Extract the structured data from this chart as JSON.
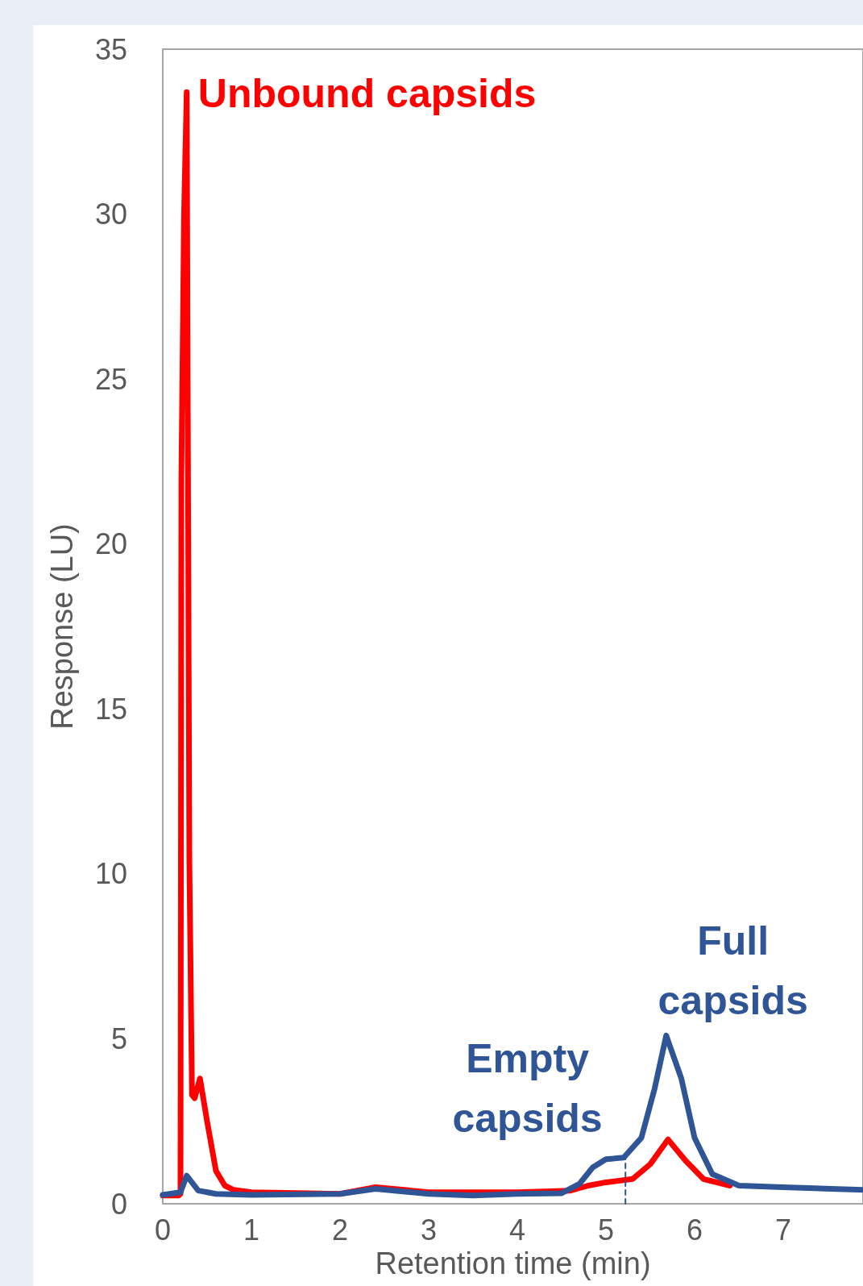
{
  "chart_data": {
    "type": "line",
    "xlabel": "Retention time (min)",
    "ylabel": "Response (LU)",
    "xlim": [
      0,
      7.9
    ],
    "xticks": [
      0,
      1,
      2,
      3,
      4,
      5,
      6,
      7
    ],
    "ylim": [
      0,
      35
    ],
    "yticks": [
      0,
      5,
      10,
      15,
      20,
      25,
      30,
      35
    ],
    "grid": false,
    "marker": "none",
    "line_style": "solid",
    "annotations": [
      {
        "text": "Unbound capsids",
        "x": 0.27,
        "y": 33.7
      },
      {
        "text": "Empty capsids",
        "x": 5.0,
        "y": 1.35
      },
      {
        "text": "Full capsids",
        "x": 5.68,
        "y": 5.1
      }
    ],
    "series": [
      {
        "color": "#ff0000",
        "x": [
          0,
          0.18,
          0.2,
          0.21,
          0.24,
          0.27,
          0.3,
          0.33,
          0.36,
          0.42,
          0.5,
          0.6,
          0.7,
          0.8,
          1.0,
          2.0,
          2.4,
          3.0,
          4.0,
          4.6,
          4.8,
          5.0,
          5.3,
          5.5,
          5.7,
          5.9,
          6.1,
          6.4
        ],
        "values": [
          0.25,
          0.25,
          0.3,
          22,
          30,
          33.7,
          10.4,
          3.3,
          3.2,
          3.8,
          2.5,
          1.0,
          0.55,
          0.42,
          0.35,
          0.3,
          0.5,
          0.35,
          0.35,
          0.4,
          0.55,
          0.65,
          0.75,
          1.2,
          1.95,
          1.3,
          0.75,
          0.55
        ]
      },
      {
        "color": "#2f5597",
        "x": [
          0,
          0.2,
          0.27,
          0.4,
          0.6,
          1.0,
          2.0,
          2.4,
          3.0,
          3.5,
          4.0,
          4.5,
          4.7,
          4.85,
          5.0,
          5.2,
          5.4,
          5.55,
          5.68,
          5.85,
          6.0,
          6.2,
          6.5,
          7.0,
          7.9
        ],
        "values": [
          0.27,
          0.35,
          0.85,
          0.4,
          0.3,
          0.27,
          0.3,
          0.45,
          0.3,
          0.25,
          0.3,
          0.32,
          0.6,
          1.1,
          1.35,
          1.4,
          2.0,
          3.5,
          5.1,
          3.8,
          2.0,
          0.9,
          0.55,
          0.5,
          0.42
        ]
      },
      {
        "color": "#2f5597",
        "line_style": "dashed",
        "x": [
          5.22,
          5.22
        ],
        "values": [
          0,
          1.4
        ]
      }
    ]
  }
}
